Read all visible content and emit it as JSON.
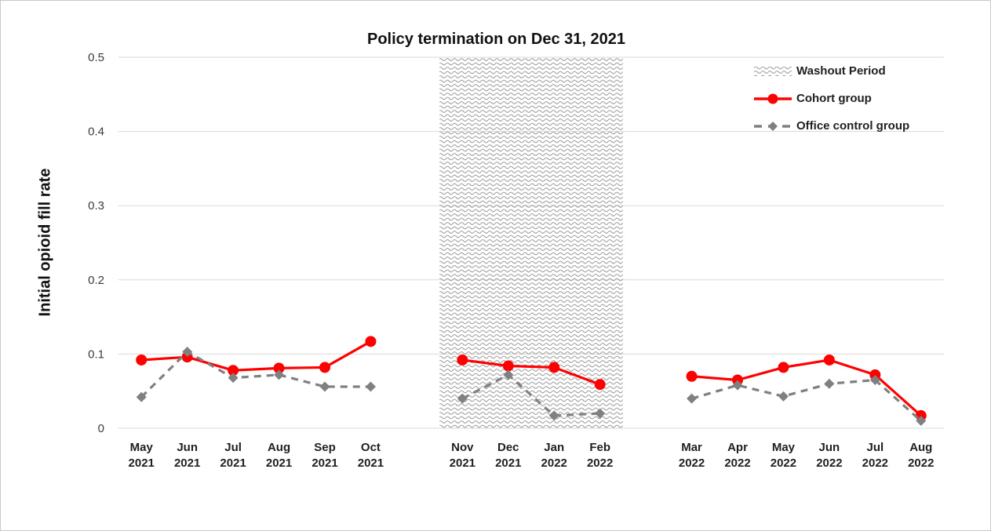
{
  "chart_data": {
    "type": "line",
    "title": "Policy termination on Dec 31, 2021",
    "xlabel": "",
    "ylabel": "Initial opioid fill rate",
    "ylim": [
      0,
      0.5
    ],
    "yticks": [
      0,
      0.1,
      0.2,
      0.3,
      0.4,
      0.5
    ],
    "ytick_labels": [
      "0",
      "0.1",
      "0.2",
      "0.3",
      "0.4",
      "0.5"
    ],
    "grid": true,
    "gridline_color": "#d9d9d9",
    "text_color": "#1f1f1f",
    "legend_position": "top-right",
    "categories": [
      {
        "month": "May",
        "year": "2021"
      },
      {
        "month": "Jun",
        "year": "2021"
      },
      {
        "month": "Jul",
        "year": "2021"
      },
      {
        "month": "Aug",
        "year": "2021"
      },
      {
        "month": "Sep",
        "year": "2021"
      },
      {
        "month": "Oct",
        "year": "2021"
      },
      {
        "month": "Nov",
        "year": "2021"
      },
      {
        "month": "Dec",
        "year": "2021"
      },
      {
        "month": "Jan",
        "year": "2022"
      },
      {
        "month": "Feb",
        "year": "2022"
      },
      {
        "month": "Mar",
        "year": "2022"
      },
      {
        "month": "Apr",
        "year": "2022"
      },
      {
        "month": "May",
        "year": "2022"
      },
      {
        "month": "Jun",
        "year": "2022"
      },
      {
        "month": "Jul",
        "year": "2022"
      },
      {
        "month": "Aug",
        "year": "2022"
      }
    ],
    "gap_after_indices": [
      5,
      9
    ],
    "series": [
      {
        "name": "Cohort group",
        "color": "#ff0000",
        "marker": "circle",
        "line_style": "solid",
        "values": [
          0.092,
          0.096,
          0.078,
          0.081,
          0.082,
          0.117,
          0.092,
          0.084,
          0.082,
          0.059,
          0.07,
          0.065,
          0.082,
          0.092,
          0.072,
          0.017
        ]
      },
      {
        "name": "Office control group",
        "color": "#808080",
        "marker": "diamond",
        "line_style": "dashed",
        "values": [
          0.042,
          0.103,
          0.068,
          0.072,
          0.056,
          0.056,
          0.04,
          0.072,
          0.017,
          0.02,
          0.04,
          0.058,
          0.043,
          0.06,
          0.065,
          0.01
        ]
      }
    ],
    "washout_band": {
      "label": "Washout Period",
      "from_category_index": 6,
      "to_category_index": 9,
      "pattern": "wavy-lines",
      "pattern_color": "#9a9a9a"
    }
  },
  "legend": {
    "items": [
      {
        "label": "Washout Period",
        "swatch": "washout-pattern"
      },
      {
        "label": "Cohort group",
        "swatch": "red-line-circle"
      },
      {
        "label": "Office control group",
        "swatch": "gray-dashed-diamond"
      }
    ]
  }
}
